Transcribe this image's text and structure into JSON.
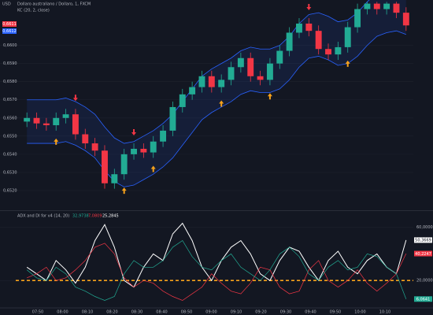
{
  "currency": "USD",
  "header": {
    "symbol": "Dollaro australiano / Dollaro, 1, FXCM",
    "quote_boxes": [
      "0,6611",
      "0,6612"
    ],
    "indicator": "KC (20, 2, close)"
  },
  "chart_data": [
    {
      "type": "candlestick",
      "up_color": "#22ab94",
      "down_color": "#f23645",
      "band_color": "#2962ff",
      "buy_color": "#f7a21b",
      "sell_color": "#f23645",
      "ylim": [
        0.651,
        0.6625
      ],
      "yticks": [
        {
          "value": 0.66,
          "label": "0,6600"
        },
        {
          "value": 0.659,
          "label": "0,6590"
        },
        {
          "value": 0.658,
          "label": "0,6580"
        },
        {
          "value": 0.657,
          "label": "0,6570"
        },
        {
          "value": 0.656,
          "label": "0,6560"
        },
        {
          "value": 0.655,
          "label": "0,6550"
        },
        {
          "value": 0.654,
          "label": "0,6540"
        },
        {
          "value": 0.653,
          "label": "0,6530"
        },
        {
          "value": 0.652,
          "label": "0,6520"
        }
      ],
      "open": [
        0.6558,
        0.656,
        0.6557,
        0.6556,
        0.656,
        0.6562,
        0.6551,
        0.6546,
        0.6542,
        0.6524,
        0.6529,
        0.654,
        0.6543,
        0.6541,
        0.6547,
        0.6553,
        0.6566,
        0.6573,
        0.6577,
        0.6583,
        0.6577,
        0.6581,
        0.6588,
        0.6593,
        0.6583,
        0.6581,
        0.659,
        0.6597,
        0.6607,
        0.6612,
        0.6608,
        0.6598,
        0.6595,
        0.6599,
        0.661,
        0.662,
        0.6623,
        0.662,
        0.6623,
        0.6618
      ],
      "high": [
        0.6563,
        0.6563,
        0.656,
        0.6563,
        0.6565,
        0.6565,
        0.6554,
        0.6549,
        0.6545,
        0.6532,
        0.6543,
        0.6546,
        0.6546,
        0.655,
        0.6556,
        0.6569,
        0.6576,
        0.658,
        0.6586,
        0.6586,
        0.6584,
        0.6591,
        0.6596,
        0.6596,
        0.6586,
        0.6593,
        0.66,
        0.661,
        0.6615,
        0.6615,
        0.6611,
        0.6601,
        0.6602,
        0.6613,
        0.6623,
        0.6624,
        0.6624,
        0.6624,
        0.6624,
        0.6621
      ],
      "low": [
        0.6555,
        0.6554,
        0.6553,
        0.6553,
        0.6557,
        0.6548,
        0.6543,
        0.6539,
        0.6521,
        0.6521,
        0.6526,
        0.6537,
        0.6538,
        0.6538,
        0.6544,
        0.655,
        0.6563,
        0.657,
        0.6574,
        0.6574,
        0.6574,
        0.6578,
        0.6585,
        0.658,
        0.6578,
        0.6578,
        0.6587,
        0.6594,
        0.6604,
        0.6605,
        0.6595,
        0.6592,
        0.6592,
        0.6596,
        0.6607,
        0.6617,
        0.6617,
        0.6617,
        0.6615,
        0.6608
      ],
      "close": [
        0.656,
        0.6557,
        0.6556,
        0.656,
        0.6562,
        0.6551,
        0.6546,
        0.6542,
        0.6524,
        0.6529,
        0.654,
        0.6543,
        0.6541,
        0.6547,
        0.6553,
        0.6566,
        0.6573,
        0.6577,
        0.6583,
        0.6577,
        0.6581,
        0.6588,
        0.6593,
        0.6583,
        0.6581,
        0.659,
        0.6597,
        0.6607,
        0.6612,
        0.6608,
        0.6598,
        0.6595,
        0.6599,
        0.661,
        0.662,
        0.6623,
        0.662,
        0.6623,
        0.6618,
        0.6611
      ],
      "upper": [
        0.657,
        0.657,
        0.657,
        0.657,
        0.6571,
        0.6569,
        0.6566,
        0.6562,
        0.6555,
        0.6549,
        0.6546,
        0.6547,
        0.655,
        0.6553,
        0.6557,
        0.6562,
        0.6569,
        0.6576,
        0.6583,
        0.6587,
        0.659,
        0.6593,
        0.6597,
        0.6599,
        0.6598,
        0.6598,
        0.66,
        0.6605,
        0.6612,
        0.6617,
        0.6618,
        0.6616,
        0.6613,
        0.6614,
        0.6618,
        0.6624,
        0.6629,
        0.6631,
        0.6632,
        0.663
      ],
      "lower": [
        0.6546,
        0.6546,
        0.6546,
        0.6546,
        0.6547,
        0.6545,
        0.6542,
        0.6538,
        0.6531,
        0.6525,
        0.6522,
        0.6523,
        0.6526,
        0.6529,
        0.6533,
        0.6538,
        0.6545,
        0.6552,
        0.6559,
        0.6563,
        0.6566,
        0.6569,
        0.6573,
        0.6575,
        0.6574,
        0.6574,
        0.6576,
        0.6581,
        0.6588,
        0.6593,
        0.6594,
        0.6592,
        0.6589,
        0.659,
        0.6594,
        0.66,
        0.6605,
        0.6607,
        0.6608,
        0.6606
      ],
      "buy_signals": [
        3,
        10,
        13,
        20,
        25,
        33
      ],
      "sell_signals": [
        5,
        11,
        29,
        38
      ],
      "time_labels": [
        "07:50",
        "08:00",
        "08:10",
        "08:20",
        "08:30",
        "08:40",
        "08:50",
        "09:00",
        "09:10",
        "09:20",
        "09:30",
        "09:40",
        "09:50",
        "10:00",
        "10:10"
      ]
    },
    {
      "type": "line",
      "title": "ADX and DI for v4 (14, 20)",
      "legend_values": [
        "32,9738",
        "7,0809",
        "25,2845"
      ],
      "ylim": [
        0,
        71
      ],
      "yticks": [
        {
          "value": 60,
          "label": "60,0000"
        },
        {
          "value": 20,
          "label": "20,0000"
        }
      ],
      "threshold": 20,
      "threshold_color": "#f7a21b",
      "series": [
        {
          "name": "ADX",
          "color": "#ffffff",
          "last_label": "50,3669",
          "values": [
            30,
            25,
            20,
            35,
            28,
            18,
            30,
            50,
            62,
            45,
            20,
            15,
            30,
            40,
            35,
            55,
            63,
            50,
            30,
            20,
            35,
            45,
            50,
            40,
            25,
            20,
            35,
            45,
            42,
            30,
            20,
            35,
            42,
            30,
            25,
            35,
            40,
            30,
            25,
            50.3669
          ]
        },
        {
          "name": "DI-",
          "color": "#f23645",
          "last_label": "40,2247",
          "values": [
            22,
            25,
            30,
            20,
            22,
            28,
            35,
            45,
            48,
            40,
            22,
            15,
            20,
            18,
            12,
            8,
            5,
            10,
            15,
            25,
            18,
            12,
            10,
            18,
            30,
            28,
            15,
            10,
            12,
            28,
            35,
            20,
            15,
            20,
            28,
            18,
            12,
            18,
            25,
            40.2247
          ]
        },
        {
          "name": "DI+",
          "color": "#22ab94",
          "last_label": "6,0641",
          "values": [
            28,
            22,
            20,
            30,
            25,
            15,
            12,
            8,
            5,
            8,
            25,
            35,
            30,
            30,
            35,
            45,
            50,
            38,
            30,
            28,
            35,
            40,
            30,
            25,
            20,
            28,
            40,
            45,
            38,
            25,
            20,
            30,
            35,
            28,
            30,
            40,
            38,
            30,
            25,
            6.0641
          ]
        }
      ]
    }
  ]
}
